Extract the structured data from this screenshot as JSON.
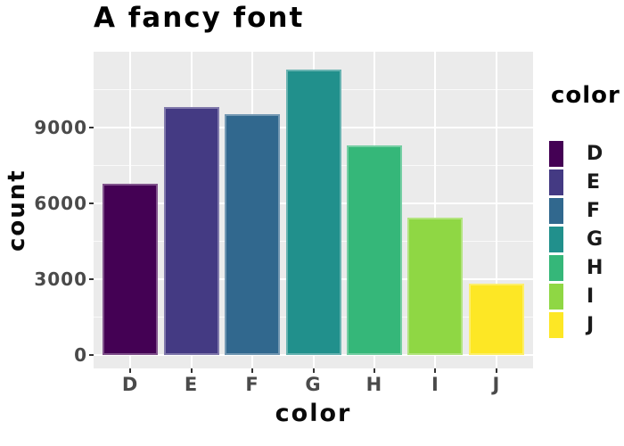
{
  "chart_data": {
    "type": "bar",
    "title": "A fancy font",
    "xlabel": "color",
    "ylabel": "count",
    "categories": [
      "D",
      "E",
      "F",
      "G",
      "H",
      "I",
      "J"
    ],
    "values": [
      6775,
      9797,
      9542,
      11292,
      8304,
      5422,
      2808
    ],
    "bar_colors": [
      "#440154",
      "#443A83",
      "#31688E",
      "#21908C",
      "#35B779",
      "#8FD744",
      "#FDE725"
    ],
    "y_major_ticks": [
      0,
      3000,
      6000,
      9000
    ],
    "y_minor_ticks": [
      1500,
      4500,
      7500,
      10500
    ],
    "ylim": [
      -530,
      12000
    ],
    "grid": true,
    "legend_title": "color",
    "legend_position": "right",
    "palette": "viridis",
    "theme": {
      "background": "#FFFFFF",
      "panel_bg": "#EBEBEB",
      "grid_color": "#FFFFFF",
      "title_color": "#000000",
      "axis_title_color": "#0A0A0A",
      "tick_label_color": "#4A4A4A",
      "tick_mark_color": "#333333"
    }
  }
}
